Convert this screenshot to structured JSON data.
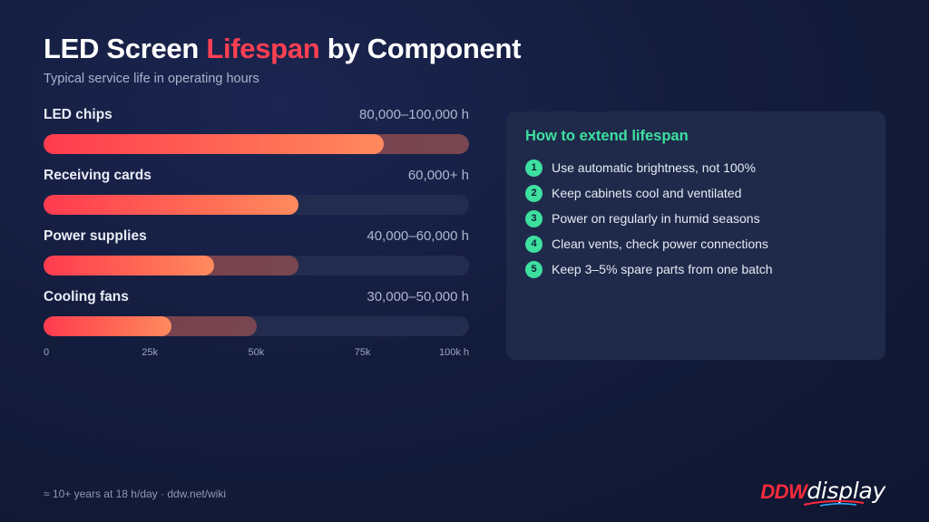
{
  "header": {
    "title_before": "LED Screen ",
    "title_accent": "Lifespan",
    "title_after": " by Component",
    "subtitle": "Typical service life in operating hours"
  },
  "chart_data": {
    "type": "bar",
    "orientation": "horizontal",
    "title": "LED Screen Lifespan by Component",
    "subtitle": "Typical service life in operating hours",
    "categories": [
      "LED chips",
      "Receiving cards",
      "Power supplies",
      "Cooling fans"
    ],
    "range_labels": [
      "80,000–100,000 h",
      "60,000+ h",
      "40,000–60,000 h",
      "30,000–50,000 h"
    ],
    "min_values": [
      80000,
      60000,
      40000,
      30000
    ],
    "max_values": [
      100000,
      60000,
      60000,
      50000
    ],
    "xlim": [
      0,
      100000
    ],
    "ticks": [
      0,
      25000,
      50000,
      75000,
      100000
    ],
    "tick_labels": [
      "0",
      "25k",
      "50k",
      "75k",
      "100k h"
    ],
    "colors": {
      "min_bar": "#ff5a52",
      "max_bar": "#7a4050",
      "track": "#232c4f"
    }
  },
  "tips": {
    "title": "How to extend lifespan",
    "items": [
      {
        "num": "1",
        "text": "Use automatic brightness, not 100%"
      },
      {
        "num": "2",
        "text": "Keep cabinets cool and ventilated"
      },
      {
        "num": "3",
        "text": "Power on regularly in humid seasons"
      },
      {
        "num": "4",
        "text": "Clean vents, check power connections"
      },
      {
        "num": "5",
        "text": "Keep 3–5% spare parts from one batch"
      }
    ]
  },
  "footer": {
    "note": "≈ 10+ years at 18 h/day · ddw.net/wiki",
    "logo_a": "DDW",
    "logo_b": "display"
  },
  "colors": {
    "accent": "#ff3f52",
    "tip_accent": "#3ee0a0",
    "background": "#141c3d"
  }
}
